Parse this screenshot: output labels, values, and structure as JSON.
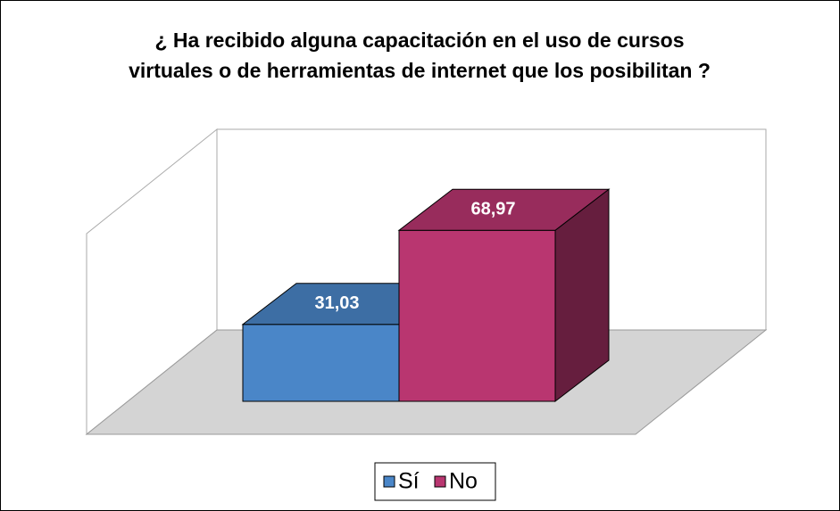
{
  "chart_data": {
    "type": "bar3d",
    "title": "¿ Ha recibido alguna capacitación  en el uso de cursos virtuales o de herramientas de internet que los posibilitan ?",
    "title_lines": [
      "¿ Ha recibido alguna capacitación  en el uso de cursos",
      "virtuales o de herramientas de internet que los posibilitan ?"
    ],
    "series": [
      {
        "name": "Sí",
        "color": "#4a86c8",
        "values": [
          31.03
        ],
        "value_labels": [
          "31,03"
        ]
      },
      {
        "name": "No",
        "color": "#b93670",
        "values": [
          68.97
        ],
        "value_labels": [
          "68,97"
        ]
      }
    ],
    "legend": "bottom"
  }
}
